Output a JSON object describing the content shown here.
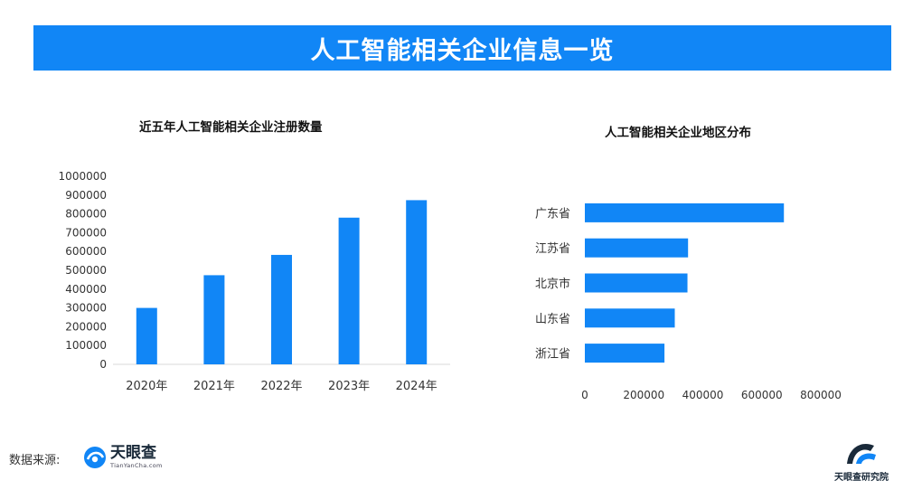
{
  "banner": {
    "title": "人工智能相关企业信息一览"
  },
  "left_chart_title": "近五年人工智能相关企业注册数量",
  "right_chart_title": "人工智能相关企业地区分布",
  "footer": {
    "source_label": "数据来源:",
    "tyc_name": "天眼查",
    "tyc_domain": "TianYanCha.com",
    "institute_name": "天眼查研究院"
  },
  "colors": {
    "accent": "#1186f6",
    "bar": "#1186f6"
  },
  "icons": {
    "tyc_logo": "tianyancha-logo-icon",
    "institute_logo": "institute-logo-icon"
  },
  "chart_data": [
    {
      "type": "bar",
      "title": "近五年人工智能相关企业注册数量",
      "categories": [
        "2020年",
        "2021年",
        "2022年",
        "2023年",
        "2024年"
      ],
      "values": [
        300000,
        474000,
        582000,
        780000,
        873000
      ],
      "ylim": [
        0,
        1000000
      ],
      "yticks": [
        "0",
        "100000",
        "200000",
        "300000",
        "400000",
        "500000",
        "600000",
        "700000",
        "800000",
        "900000",
        "1000000"
      ],
      "grid": false
    },
    {
      "type": "bar",
      "orientation": "horizontal",
      "title": "人工智能相关企业地区分布",
      "categories": [
        "广东省",
        "江苏省",
        "北京市",
        "山东省",
        "浙江省"
      ],
      "values": [
        675000,
        350000,
        348000,
        305000,
        270000
      ],
      "xlim": [
        0,
        800000
      ],
      "xticks": [
        "0",
        "200000",
        "400000",
        "600000",
        "800000"
      ],
      "grid": false
    }
  ]
}
